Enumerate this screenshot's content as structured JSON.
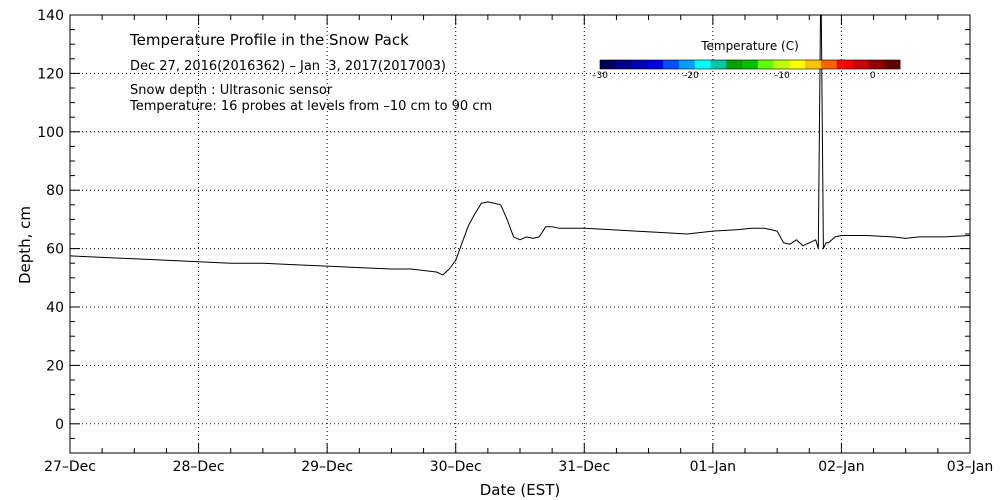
{
  "chart_data": {
    "type": "line",
    "title": "Temperature Profile in the Snow Pack",
    "subtitle": "Dec 27, 2016(2016362) – Jan  3, 2017(2017003)",
    "notes": [
      "Snow depth : Ultrasonic sensor",
      "Temperature: 16 probes at levels from –10 cm to 90 cm"
    ],
    "xlabel": "Date (EST)",
    "ylabel": "Depth, cm",
    "xlim": [
      0,
      7
    ],
    "ylim": [
      -10,
      140
    ],
    "x_ticks": [
      {
        "value": 0,
        "label": "27–Dec"
      },
      {
        "value": 1,
        "label": "28–Dec"
      },
      {
        "value": 2,
        "label": "29–Dec"
      },
      {
        "value": 3,
        "label": "30–Dec"
      },
      {
        "value": 4,
        "label": "31–Dec"
      },
      {
        "value": 5,
        "label": "01–Jan"
      },
      {
        "value": 6,
        "label": "02–Jan"
      },
      {
        "value": 7,
        "label": "03–Jan"
      }
    ],
    "y_ticks": [
      0,
      20,
      40,
      60,
      80,
      100,
      120,
      140
    ],
    "grid": true,
    "series": [
      {
        "name": "",
        "color": "#000000",
        "x": [
          0,
          0.25,
          0.5,
          0.75,
          1,
          1.25,
          1.5,
          1.75,
          2,
          2.25,
          2.5,
          2.65,
          2.75,
          2.85,
          2.9,
          2.95,
          3.0,
          3.05,
          3.1,
          3.15,
          3.2,
          3.25,
          3.3,
          3.35,
          3.4,
          3.45,
          3.5,
          3.55,
          3.6,
          3.65,
          3.7,
          3.75,
          3.8,
          3.85,
          3.9,
          3.95,
          4.0,
          4.2,
          4.4,
          4.6,
          4.8,
          5.0,
          5.2,
          5.3,
          5.4,
          5.45,
          5.5,
          5.55,
          5.6,
          5.65,
          5.7,
          5.75,
          5.8,
          5.82,
          5.84,
          5.86,
          5.88,
          5.9,
          5.95,
          6.0,
          6.2,
          6.4,
          6.5,
          6.6,
          6.8,
          7.0
        ],
        "y": [
          57.5,
          57,
          56.5,
          56,
          55.5,
          55,
          55,
          54.5,
          54,
          53.5,
          53,
          53,
          52.5,
          52,
          51,
          53,
          56,
          62,
          68,
          72,
          75.5,
          76,
          75.5,
          75,
          70,
          64,
          63,
          64,
          63.5,
          64,
          67.5,
          67.5,
          67,
          67,
          67,
          67,
          67,
          66.5,
          66,
          65.5,
          65,
          66,
          66.5,
          67,
          67,
          66.5,
          66,
          62,
          61.5,
          63,
          61,
          62,
          63,
          60,
          155,
          60,
          62,
          62,
          64,
          64.5,
          64.5,
          64,
          63.5,
          64,
          64,
          64.5
        ]
      }
    ],
    "colorbar": {
      "title": "Temperature (C)",
      "range": [
        -30,
        3
      ],
      "tick_values": [
        -30,
        -20,
        -10,
        0
      ],
      "tick_labels": [
        "–30",
        "–20",
        "–10",
        "0"
      ],
      "colors": [
        "#000058",
        "#000088",
        "#0000b8",
        "#0000e8",
        "#0050ff",
        "#00a0ff",
        "#00ffff",
        "#00c8a0",
        "#00a000",
        "#00c000",
        "#60ff00",
        "#c0ff00",
        "#ffff00",
        "#ffc000",
        "#ff6000",
        "#ff0000",
        "#d00000",
        "#900000",
        "#600000"
      ]
    }
  }
}
